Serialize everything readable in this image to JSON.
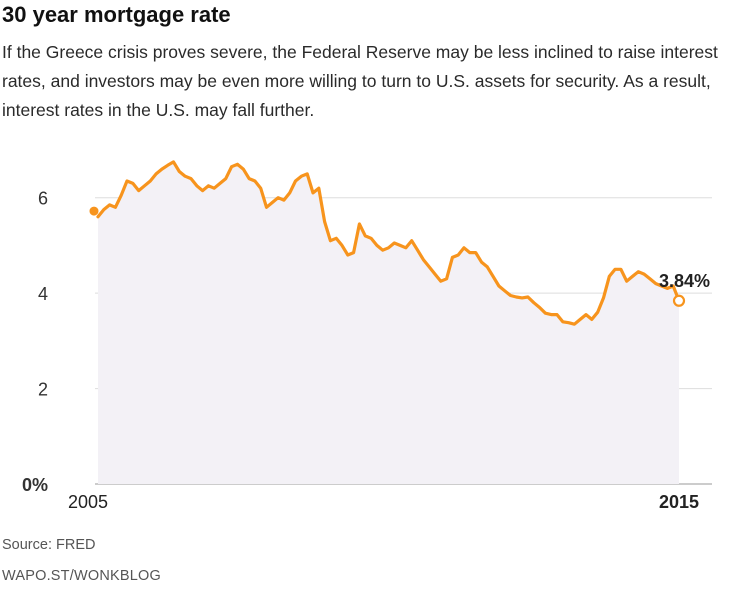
{
  "header": {
    "title": "30 year mortgage rate",
    "subtitle": "If the Greece crisis proves severe, the Federal Reserve may be less inclined to raise interest rates, and investors may be even more willing to turn to U.S. assets for security. As a result, interest rates in the U.S. may fall further."
  },
  "footer": {
    "source": "Source: FRED",
    "credit": "WAPO.ST/WONKBLOG"
  },
  "colors": {
    "line": "#f7941d",
    "area": "#f3f1f6",
    "grid": "#dddddd"
  },
  "chart_data": {
    "type": "line",
    "title": "30 year mortgage rate",
    "xlabel": "",
    "ylabel": "",
    "xlim": [
      2005.0,
      2015.5
    ],
    "ylim": [
      0,
      7
    ],
    "yticks": [
      0,
      2,
      4,
      6
    ],
    "ytick_labels": [
      "0%",
      "2",
      "4",
      "6"
    ],
    "xticks": [
      2005,
      2015
    ],
    "xtick_labels": [
      "2005",
      "2015"
    ],
    "grid": true,
    "series": [
      {
        "name": "30 year mortgage rate",
        "x": [
          2005.0,
          2005.1,
          2005.2,
          2005.3,
          2005.4,
          2005.5,
          2005.6,
          2005.7,
          2005.8,
          2005.9,
          2006.0,
          2006.1,
          2006.2,
          2006.3,
          2006.4,
          2006.5,
          2006.6,
          2006.7,
          2006.8,
          2006.9,
          2007.0,
          2007.1,
          2007.2,
          2007.3,
          2007.4,
          2007.5,
          2007.6,
          2007.7,
          2007.8,
          2007.9,
          2008.0,
          2008.1,
          2008.2,
          2008.3,
          2008.4,
          2008.5,
          2008.6,
          2008.7,
          2008.8,
          2008.9,
          2009.0,
          2009.1,
          2009.2,
          2009.3,
          2009.4,
          2009.5,
          2009.6,
          2009.7,
          2009.8,
          2009.9,
          2010.0,
          2010.1,
          2010.2,
          2010.3,
          2010.4,
          2010.5,
          2010.6,
          2010.7,
          2010.8,
          2010.9,
          2011.0,
          2011.1,
          2011.2,
          2011.3,
          2011.4,
          2011.5,
          2011.6,
          2011.7,
          2011.8,
          2011.9,
          2012.0,
          2012.1,
          2012.2,
          2012.3,
          2012.4,
          2012.5,
          2012.6,
          2012.7,
          2012.8,
          2012.9,
          2013.0,
          2013.1,
          2013.2,
          2013.3,
          2013.4,
          2013.5,
          2013.6,
          2013.7,
          2013.8,
          2013.9,
          2014.0,
          2014.1,
          2014.2,
          2014.3,
          2014.4,
          2014.5,
          2014.6,
          2014.7,
          2014.8,
          2014.9,
          2015.0
        ],
        "values": [
          5.6,
          5.75,
          5.85,
          5.8,
          6.05,
          6.35,
          6.3,
          6.15,
          6.25,
          6.35,
          6.5,
          6.6,
          6.68,
          6.75,
          6.55,
          6.45,
          6.4,
          6.25,
          6.15,
          6.25,
          6.2,
          6.3,
          6.4,
          6.65,
          6.7,
          6.6,
          6.4,
          6.35,
          6.2,
          5.8,
          5.9,
          6.0,
          5.95,
          6.1,
          6.35,
          6.45,
          6.5,
          6.1,
          6.2,
          5.5,
          5.1,
          5.15,
          5.0,
          4.8,
          4.85,
          5.45,
          5.2,
          5.15,
          5.0,
          4.9,
          4.95,
          5.05,
          5.0,
          4.95,
          5.1,
          4.9,
          4.7,
          4.55,
          4.4,
          4.25,
          4.3,
          4.75,
          4.8,
          4.95,
          4.85,
          4.85,
          4.65,
          4.55,
          4.35,
          4.15,
          4.05,
          3.95,
          3.92,
          3.9,
          3.92,
          3.8,
          3.7,
          3.58,
          3.55,
          3.55,
          3.4,
          3.38,
          3.35,
          3.45,
          3.55,
          3.45,
          3.6,
          3.9,
          4.35,
          4.5,
          4.5,
          4.25,
          4.35,
          4.45,
          4.4,
          4.3,
          4.2,
          4.15,
          4.1,
          4.15,
          3.84
        ]
      }
    ],
    "annotations": [
      {
        "label": "3.84%",
        "x": 2015.0,
        "y": 3.84
      }
    ],
    "start_marker": {
      "x": 2005.0,
      "y": 5.72
    }
  }
}
